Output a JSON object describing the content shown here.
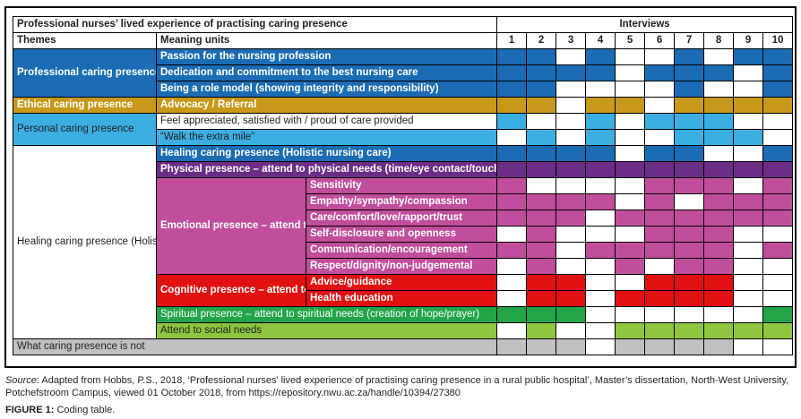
{
  "colors": {
    "blue": "#1B6CB4",
    "light_blue": "#3BAEE2",
    "gold": "#C8981B",
    "purple": "#6C2D87",
    "pink": "#C14D9D",
    "red": "#E21111",
    "green": "#22A447",
    "light_green": "#8FC640",
    "grey": "#C0C0C1",
    "white": "#FFFFFF",
    "black": "#231F20"
  },
  "table": {
    "title": "Professional nurses’ lived experience of practising caring presence",
    "interviews_label": "Interviews",
    "themes_label": "Themes",
    "meaning_units_label": "Meaning units",
    "interview_numbers": [
      "1",
      "2",
      "3",
      "4",
      "5",
      "6",
      "7",
      "8",
      "9",
      "10"
    ],
    "themes": [
      {
        "label": "Professional caring presence"
      },
      {
        "label": "Ethical caring presence"
      },
      {
        "label": "Personal caring presence"
      },
      {
        "label": "Healing caring presence (Holistic nursing care)"
      }
    ],
    "groups": [
      {
        "label": "Emotional presence – attend to emotional needs"
      },
      {
        "label": "Cognitive presence – attend to cognitive needs"
      }
    ],
    "rows": [
      {
        "label": "Passion for the nursing profession",
        "cell_color": "blue",
        "cells": [
          1,
          1,
          0,
          1,
          0,
          0,
          1,
          0,
          1,
          1
        ]
      },
      {
        "label": "Dedication and commitment to the best nursing care",
        "cell_color": "blue",
        "cells": [
          1,
          1,
          1,
          1,
          0,
          1,
          1,
          1,
          0,
          1
        ]
      },
      {
        "label": "Being a role model (showing integrity and responsibility)",
        "cell_color": "blue",
        "cells": [
          1,
          1,
          0,
          0,
          0,
          0,
          1,
          0,
          0,
          1
        ]
      },
      {
        "label": "Advocacy / Referral",
        "cell_color": "gold",
        "cells": [
          1,
          1,
          0,
          1,
          1,
          0,
          1,
          1,
          1,
          1
        ]
      },
      {
        "label": "Feel appreciated, satisfied with / proud of care provided",
        "cell_color": "light_blue",
        "cells": [
          1,
          0,
          0,
          1,
          0,
          1,
          1,
          1,
          0,
          0
        ]
      },
      {
        "label": "“Walk the extra mile”",
        "cell_color": "light_blue",
        "cells": [
          0,
          1,
          0,
          1,
          0,
          0,
          1,
          1,
          1,
          0
        ]
      },
      {
        "label": "Healing caring presence (Holistic nursing care)",
        "cell_color": "blue",
        "cells": [
          1,
          1,
          1,
          1,
          0,
          1,
          1,
          0,
          0,
          1
        ]
      },
      {
        "label": "Physical presence – attend to physical needs (time/eye contact/touch)",
        "cell_color": "purple",
        "cells": [
          1,
          1,
          1,
          1,
          1,
          1,
          1,
          1,
          1,
          1
        ]
      },
      {
        "label": "Sensitivity",
        "cell_color": "pink",
        "cells": [
          1,
          0,
          0,
          0,
          0,
          1,
          1,
          1,
          0,
          1
        ]
      },
      {
        "label": "Empathy/sympathy/compassion",
        "cell_color": "pink",
        "cells": [
          1,
          1,
          1,
          1,
          0,
          1,
          0,
          1,
          1,
          1
        ]
      },
      {
        "label": "Care/comfort/love/rapport/trust",
        "cell_color": "pink",
        "cells": [
          1,
          1,
          1,
          0,
          1,
          1,
          1,
          1,
          1,
          1
        ]
      },
      {
        "label": "Self-disclosure and openness",
        "cell_color": "pink",
        "cells": [
          0,
          1,
          0,
          0,
          0,
          1,
          1,
          1,
          0,
          0
        ]
      },
      {
        "label": "Communication/encouragement",
        "cell_color": "pink",
        "cells": [
          1,
          1,
          0,
          1,
          1,
          1,
          1,
          1,
          0,
          1
        ]
      },
      {
        "label": "Respect/dignity/non-judgemental",
        "cell_color": "pink",
        "cells": [
          0,
          1,
          0,
          0,
          1,
          0,
          1,
          1,
          0,
          0
        ]
      },
      {
        "label": "Advice/guidance",
        "cell_color": "red",
        "cells": [
          0,
          1,
          1,
          0,
          0,
          1,
          1,
          1,
          0,
          0
        ]
      },
      {
        "label": "Health education",
        "cell_color": "red",
        "cells": [
          0,
          1,
          1,
          0,
          1,
          1,
          1,
          1,
          0,
          0
        ]
      },
      {
        "label": "Spiritual presence – attend to spiritual needs (creation of hope/prayer)",
        "cell_color": "green",
        "cells": [
          1,
          1,
          1,
          0,
          0,
          0,
          0,
          0,
          0,
          1
        ]
      },
      {
        "label": "Attend to social needs",
        "cell_color": "light_green",
        "cells": [
          0,
          1,
          0,
          0,
          1,
          1,
          1,
          1,
          1,
          1
        ]
      },
      {
        "label": "What caring presence is not",
        "cell_color": "grey",
        "cells": [
          1,
          1,
          1,
          0,
          1,
          1,
          1,
          1,
          0,
          0
        ]
      }
    ]
  },
  "chart_data": {
    "type": "table",
    "title": "Professional nurses’ lived experience of practising caring presence",
    "columns": [
      "1",
      "2",
      "3",
      "4",
      "5",
      "6",
      "7",
      "8",
      "9",
      "10"
    ],
    "note": "1 = meaning unit present in interview (coloured cell), 0 = absent (white cell)"
  },
  "footer": {
    "source_label": "Source",
    "source_text": ": Adapted from Hobbs, P.S., 2018, ‘Professional nurses’ lived experience of practising caring presence in a rural public hospital’, Master’s dissertation, North-West University, Potchefstroom Campus, viewed 01 October 2018, from https://repository.nwu.ac.za/handle/10394/27380",
    "figure_label": "FIGURE 1:",
    "figure_caption": " Coding table."
  }
}
